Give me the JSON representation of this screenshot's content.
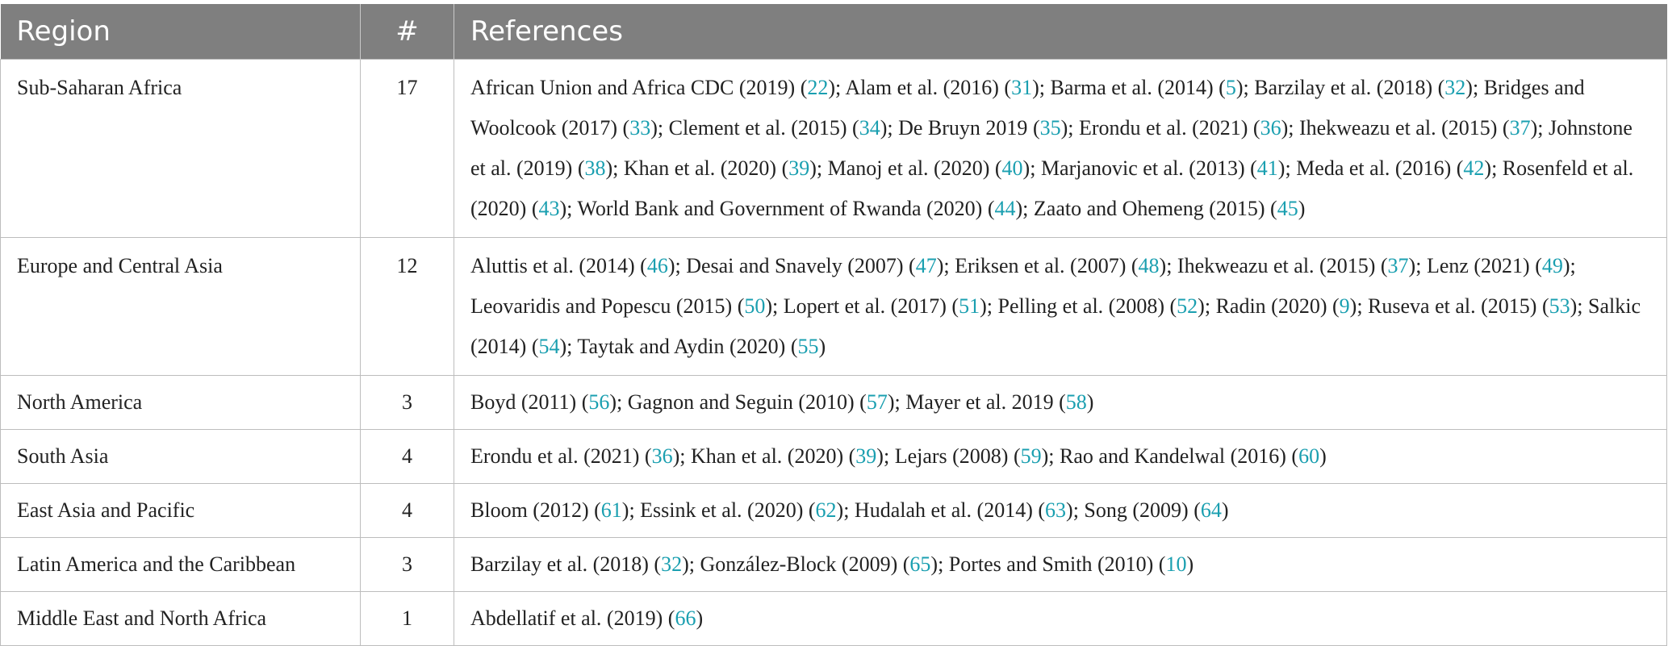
{
  "header": {
    "region": "Region",
    "count": "#",
    "references": "References"
  },
  "rows": [
    {
      "region": "Sub-Saharan Africa",
      "count": "17",
      "refs": [
        {
          "text": "African Union and Africa CDC (2019)",
          "cite": "22"
        },
        {
          "text": "Alam et al. (2016)",
          "cite": "31"
        },
        {
          "text": "Barma et al. (2014)",
          "cite": "5"
        },
        {
          "text": "Barzilay et al. (2018)",
          "cite": "32"
        },
        {
          "text": "Bridges and Woolcook (2017)",
          "cite": "33"
        },
        {
          "text": "Clement et al. (2015)",
          "cite": "34"
        },
        {
          "text": "De Bruyn 2019",
          "cite": "35"
        },
        {
          "text": "Erondu et al. (2021)",
          "cite": "36"
        },
        {
          "text": "Ihekweazu et al. (2015)",
          "cite": "37"
        },
        {
          "text": "Johnstone et al. (2019)",
          "cite": "38"
        },
        {
          "text": "Khan et al. (2020)",
          "cite": "39"
        },
        {
          "text": "Manoj et al. (2020)",
          "cite": "40"
        },
        {
          "text": "Marjanovic et al. (2013)",
          "cite": "41"
        },
        {
          "text": "Meda et al. (2016)",
          "cite": "42"
        },
        {
          "text": "Rosenfeld et al. (2020)",
          "cite": "43"
        },
        {
          "text": "World Bank and Government of Rwanda (2020)",
          "cite": "44"
        },
        {
          "text": "Zaato and Ohemeng (2015)",
          "cite": "45"
        }
      ]
    },
    {
      "region": "Europe and Central Asia",
      "count": "12",
      "refs": [
        {
          "text": "Aluttis et al. (2014)",
          "cite": "46"
        },
        {
          "text": "Desai and Snavely (2007)",
          "cite": "47"
        },
        {
          "text": "Eriksen et al. (2007)",
          "cite": "48"
        },
        {
          "text": "Ihekweazu et al. (2015)",
          "cite": "37"
        },
        {
          "text": "Lenz (2021)",
          "cite": "49"
        },
        {
          "text": "Leovaridis and Popescu (2015)",
          "cite": "50"
        },
        {
          "text": "Lopert et al. (2017)",
          "cite": "51"
        },
        {
          "text": "Pelling et al. (2008)",
          "cite": "52"
        },
        {
          "text": "Radin (2020)",
          "cite": "9"
        },
        {
          "text": "Ruseva et al. (2015)",
          "cite": "53"
        },
        {
          "text": "Salkic (2014)",
          "cite": "54"
        },
        {
          "text": "Taytak and Aydin (2020)",
          "cite": "55"
        }
      ]
    },
    {
      "region": "North America",
      "count": "3",
      "refs": [
        {
          "text": "Boyd (2011)",
          "cite": "56"
        },
        {
          "text": "Gagnon and Seguin (2010)",
          "cite": "57"
        },
        {
          "text": "Mayer et al. 2019",
          "cite": "58"
        }
      ]
    },
    {
      "region": "South Asia",
      "count": "4",
      "refs": [
        {
          "text": "Erondu et al. (2021)",
          "cite": "36"
        },
        {
          "text": "Khan et al. (2020)",
          "cite": "39"
        },
        {
          "text": "Lejars (2008)",
          "cite": "59"
        },
        {
          "text": "Rao and Kandelwal (2016)",
          "cite": "60"
        }
      ]
    },
    {
      "region": "East Asia and Pacific",
      "count": "4",
      "refs": [
        {
          "text": "Bloom (2012)",
          "cite": "61"
        },
        {
          "text": "Essink et al. (2020)",
          "cite": "62"
        },
        {
          "text": "Hudalah et al. (2014)",
          "cite": "63"
        },
        {
          "text": "Song (2009)",
          "cite": "64"
        }
      ]
    },
    {
      "region": "Latin America and the Caribbean",
      "count": "3",
      "refs": [
        {
          "text": "Barzilay et al. (2018)",
          "cite": "32"
        },
        {
          "text": "González-Block (2009)",
          "cite": "65"
        },
        {
          "text": "Portes and Smith (2010)",
          "cite": "10"
        }
      ]
    },
    {
      "region": "Middle East and North Africa",
      "count": "1",
      "refs": [
        {
          "text": "Abdellatif et al. (2019)",
          "cite": "66"
        }
      ]
    }
  ]
}
